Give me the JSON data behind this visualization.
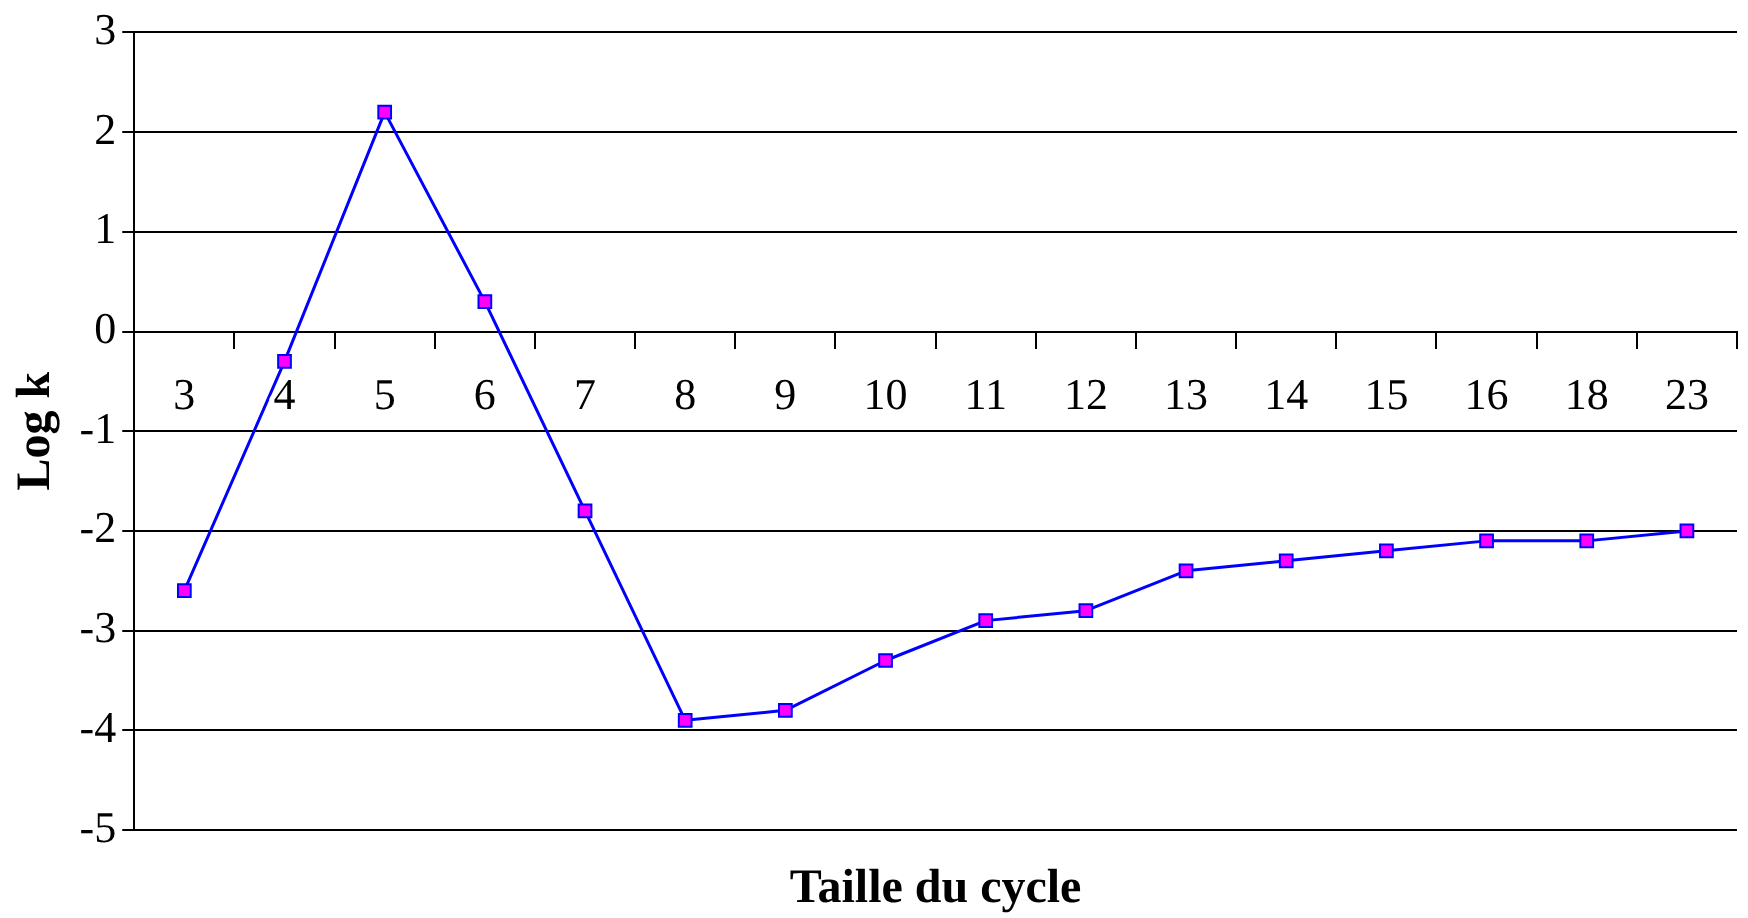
{
  "chart_data": {
    "type": "line",
    "xlabel": "Taille du cycle",
    "ylabel": "Log k",
    "categories": [
      "3",
      "4",
      "5",
      "6",
      "7",
      "8",
      "9",
      "10",
      "11",
      "12",
      "13",
      "14",
      "15",
      "16",
      "18",
      "23"
    ],
    "series": [
      {
        "color": "#0000ff",
        "colors": [
          "#ff00ff",
          "#ff00ff",
          "#ff00ff",
          "#ff00ff",
          "#ff00ff",
          "#ff00ff",
          "#ff00ff",
          "#ff00ff",
          "#ff00ff",
          "#ff00ff",
          "#ff00ff",
          "#ff00ff",
          "#ff00ff",
          "#ff00ff",
          "#ff00ff",
          "#ff00ff"
        ],
        "values": [
          -2.6,
          -0.3,
          2.2,
          0.3,
          -1.8,
          -3.9,
          -3.8,
          -3.3,
          -2.9,
          -2.8,
          -2.4,
          -2.3,
          -2.2,
          -2.1,
          -2.1,
          -2.0
        ]
      }
    ],
    "ylim": [
      -5,
      3
    ],
    "yticks": [
      -5,
      -4,
      -3,
      -2,
      -1,
      0,
      1,
      2,
      3
    ],
    "grid": "y",
    "marker": "square",
    "line_style": "solid",
    "legend": false
  }
}
